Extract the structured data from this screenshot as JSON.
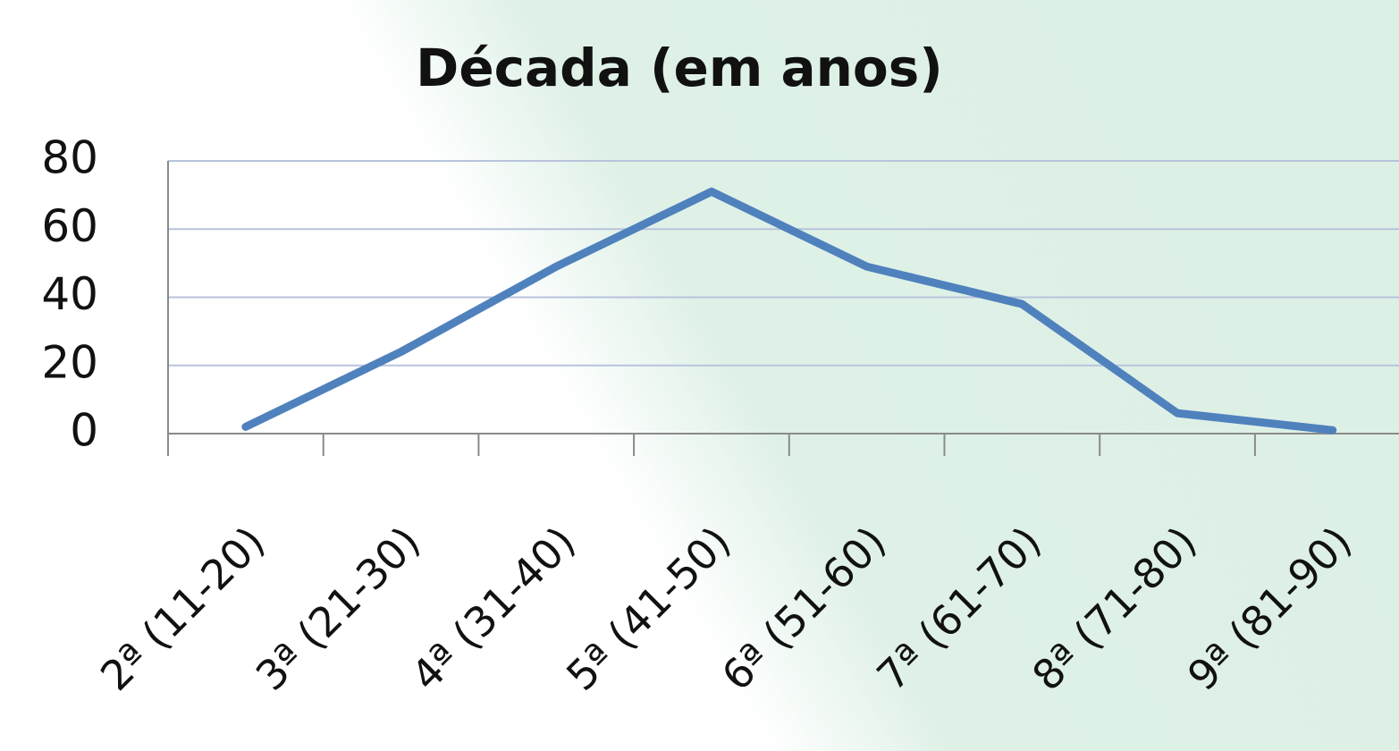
{
  "chart_data": {
    "type": "line",
    "title": "Década (em anos)",
    "categories": [
      "2ª (11-20)",
      "3ª (21-30)",
      "4ª (31-40)",
      "5ª (41-50)",
      "6ª (51-60)",
      "7ª (61-70)",
      "8ª (71-80)",
      "9ª (81-90)"
    ],
    "series": [
      {
        "name": "Década (em anos)",
        "color": "#4f81bd",
        "values": [
          2,
          24,
          49,
          71,
          49,
          38,
          6,
          1
        ]
      }
    ],
    "ylim": [
      0,
      80
    ],
    "yticks": [
      0,
      20,
      40,
      60,
      80
    ],
    "grid": true
  }
}
